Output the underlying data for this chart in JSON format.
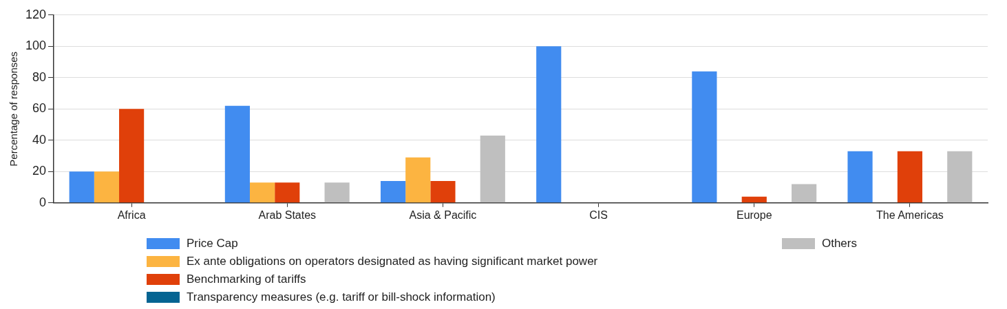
{
  "chart_data": {
    "type": "bar",
    "ylabel": "Percentage of responses",
    "categories": [
      "Africa",
      "Arab States",
      "Asia & Pacific",
      "CIS",
      "Europe",
      "The Americas"
    ],
    "series": [
      {
        "name": "Price Cap",
        "color": "#418cf0",
        "values": [
          20,
          62,
          14,
          100,
          84,
          33
        ]
      },
      {
        "name": "Ex ante obligations on operators designated as having significant market power",
        "color": "#fcb441",
        "values": [
          20,
          13,
          29,
          0,
          0,
          0
        ]
      },
      {
        "name": "Benchmarking of tariffs",
        "color": "#e0400a",
        "values": [
          60,
          13,
          14,
          0,
          4,
          33
        ]
      },
      {
        "name": "Transparency measures (e.g. tariff or bill-shock information)",
        "color": "#056492",
        "values": [
          0,
          0,
          0,
          0,
          0,
          0
        ]
      },
      {
        "name": "Others",
        "color": "#bfbfbf",
        "values": [
          0,
          13,
          43,
          0,
          12,
          33
        ]
      }
    ],
    "ylim": [
      0,
      120
    ],
    "yticks": [
      0,
      20,
      40,
      60,
      80,
      100,
      120
    ],
    "grid": "y",
    "legend": "bottom"
  }
}
